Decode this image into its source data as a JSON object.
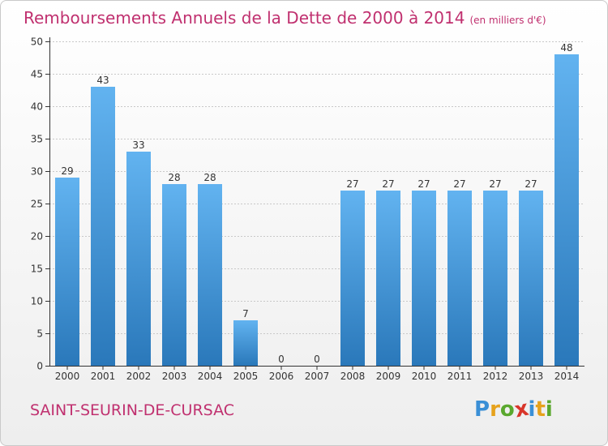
{
  "title": "Remboursements Annuels de la Dette de 2000 à 2014",
  "subtitle": "(en milliers d'€)",
  "commune": "SAINT-SEURIN-DE-CURSAC",
  "logo": {
    "letters": [
      {
        "ch": "P",
        "color": "#3a8fd6"
      },
      {
        "ch": "r",
        "color": "#e6a21c"
      },
      {
        "ch": "o",
        "color": "#5aa82e"
      },
      {
        "ch": "x",
        "color": "#d8352a"
      },
      {
        "ch": "i",
        "color": "#3a8fd6"
      },
      {
        "ch": "t",
        "color": "#e6a21c"
      },
      {
        "ch": "i",
        "color": "#5aa82e"
      }
    ]
  },
  "colors": {
    "bar_top": "#62b3f0",
    "bar_bottom": "#2a78ba",
    "title": "#c0306f",
    "axis": "#333333",
    "grid": "#c8c8c8"
  },
  "chart_data": {
    "type": "bar",
    "title": "Remboursements Annuels de la Dette de 2000 à 2014",
    "subtitle": "(en milliers d'€)",
    "categories": [
      "2000",
      "2001",
      "2002",
      "2003",
      "2004",
      "2005",
      "2006",
      "2007",
      "2008",
      "2009",
      "2010",
      "2011",
      "2012",
      "2013",
      "2014"
    ],
    "values": [
      29,
      43,
      33,
      28,
      28,
      7,
      0,
      0,
      27,
      27,
      27,
      27,
      27,
      27,
      48
    ],
    "ylim": [
      0,
      50
    ],
    "yticks": [
      0,
      5,
      10,
      15,
      20,
      25,
      30,
      35,
      40,
      45,
      50
    ],
    "grid": true,
    "data_labels": true
  }
}
